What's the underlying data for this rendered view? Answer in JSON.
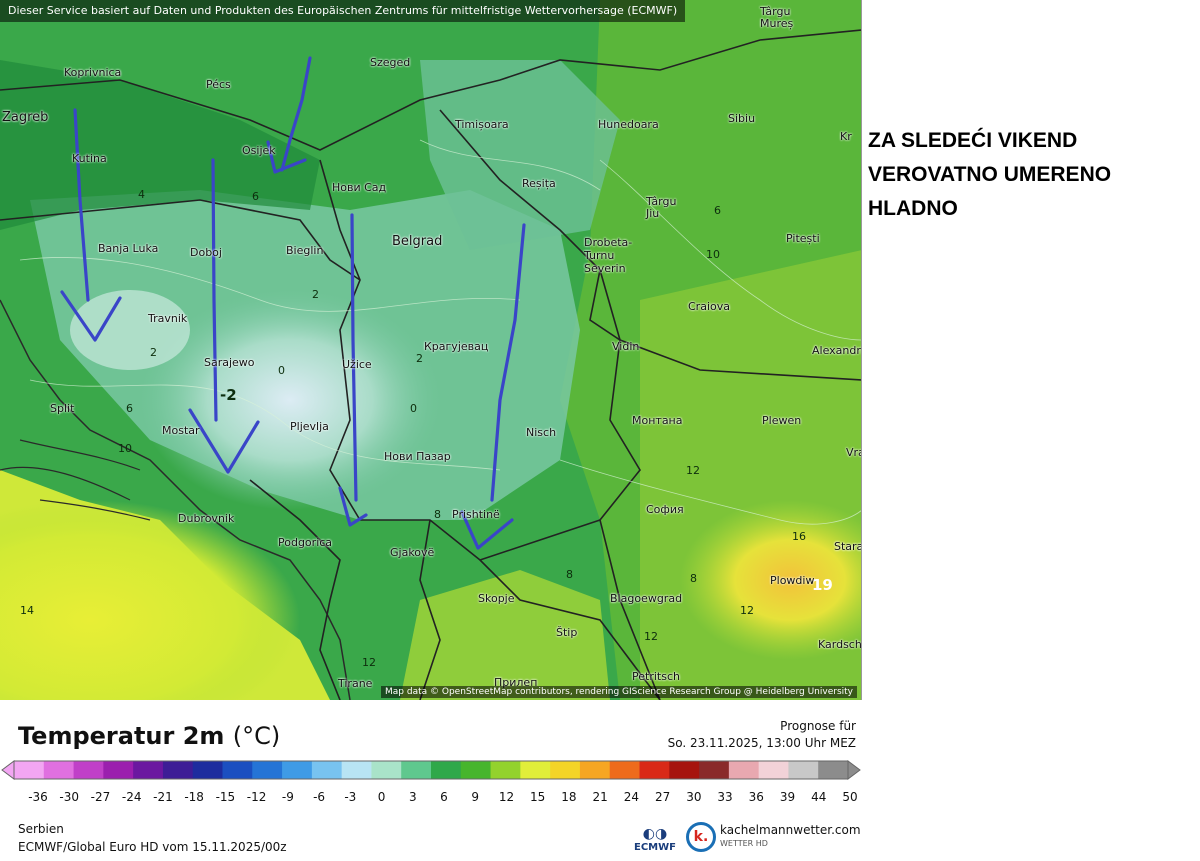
{
  "map": {
    "banner": "Dieser Service basiert auf Daten und Produkten des Europäischen Zentrums für mittelfristige Wettervorhersage (ECMWF)",
    "attribution": "Map data © OpenStreetMap contributors, rendering GIScience Research Group @ Heidelberg University",
    "cities": [
      "Koprivnica",
      "Pécs",
      "Szeged",
      "Zagreb",
      "Timișoara",
      "Hunedoara",
      "Sibiu",
      "Târgu Mureș",
      "Kutina",
      "Osijek",
      "Нови Сад",
      "Reșița",
      "Târgu Jiu",
      "Banja Luka",
      "Doboj",
      "Bieglin",
      "Belgrad",
      "Drobeta-Turnu Severin",
      "Pitești",
      "Craiova",
      "Travnik",
      "Крагујевац",
      "Vidin",
      "Alexandria",
      "Sarajewo",
      "Užice",
      "Split",
      "Mostar",
      "Pljevlja",
      "Nisch",
      "Монтана",
      "Plewen",
      "Нови Пазар",
      "Dubrovnik",
      "Prishtinë",
      "София",
      "Podgorica",
      "Gjakovë",
      "Plowdiw",
      "Skopje",
      "Blagoewgrad",
      "Štip",
      "Tirane",
      "Прилеп",
      "Petritsch",
      "Kardsch",
      "Stara",
      "Vratsa",
      "Kr"
    ],
    "isotherm_labels": [
      "4",
      "6",
      "2",
      "2",
      "2",
      "-2",
      "0",
      "0",
      "6",
      "10",
      "8",
      "6",
      "12",
      "16",
      "8",
      "12",
      "12",
      "14",
      "12",
      "8",
      "10",
      "19"
    ]
  },
  "annotation": {
    "lines": [
      "ZA SLEDEĆI VIKEND",
      "VEROVATNO UMERENO",
      "HLADNO"
    ],
    "color": "#000000",
    "arrow_color": "#3a45c8"
  },
  "legend": {
    "title": "Temperatur 2m",
    "unit": "(°C)",
    "prognose_label": "Prognose für",
    "prognose_date": "So. 23.11.2025, 13:00 Uhr MEZ",
    "ticks": [
      "-36",
      "-30",
      "-27",
      "-24",
      "-21",
      "-18",
      "-15",
      "-12",
      "-9",
      "-6",
      "-3",
      "0",
      "3",
      "6",
      "9",
      "12",
      "15",
      "18",
      "21",
      "24",
      "27",
      "30",
      "33",
      "36",
      "39",
      "44",
      "50"
    ],
    "colors": [
      "#f2a6f2",
      "#e070e0",
      "#c040c8",
      "#9b1fae",
      "#6b18a0",
      "#3d1d96",
      "#1d2c9e",
      "#1b4fc0",
      "#2574d6",
      "#3f9be6",
      "#78c3f0",
      "#b8e4f4",
      "#a9e3c9",
      "#5fc88e",
      "#2fa84a",
      "#47b52d",
      "#93d22c",
      "#e1ee3a",
      "#f3d427",
      "#f6a622",
      "#ee6b1c",
      "#d92917",
      "#a6140e",
      "#8a2a2a",
      "#e8a8b0",
      "#f2d2d8",
      "#c8c8c8",
      "#8c8c8c"
    ]
  },
  "footer": {
    "region": "Serbien",
    "model": "ECMWF/Global Euro HD vom  15.11.2025/00z",
    "ecmwf_logo": "ECMWF",
    "brand": "kachelmannwetter.com",
    "brand_sub": "WETTER HD",
    "brand_icon": "k."
  }
}
